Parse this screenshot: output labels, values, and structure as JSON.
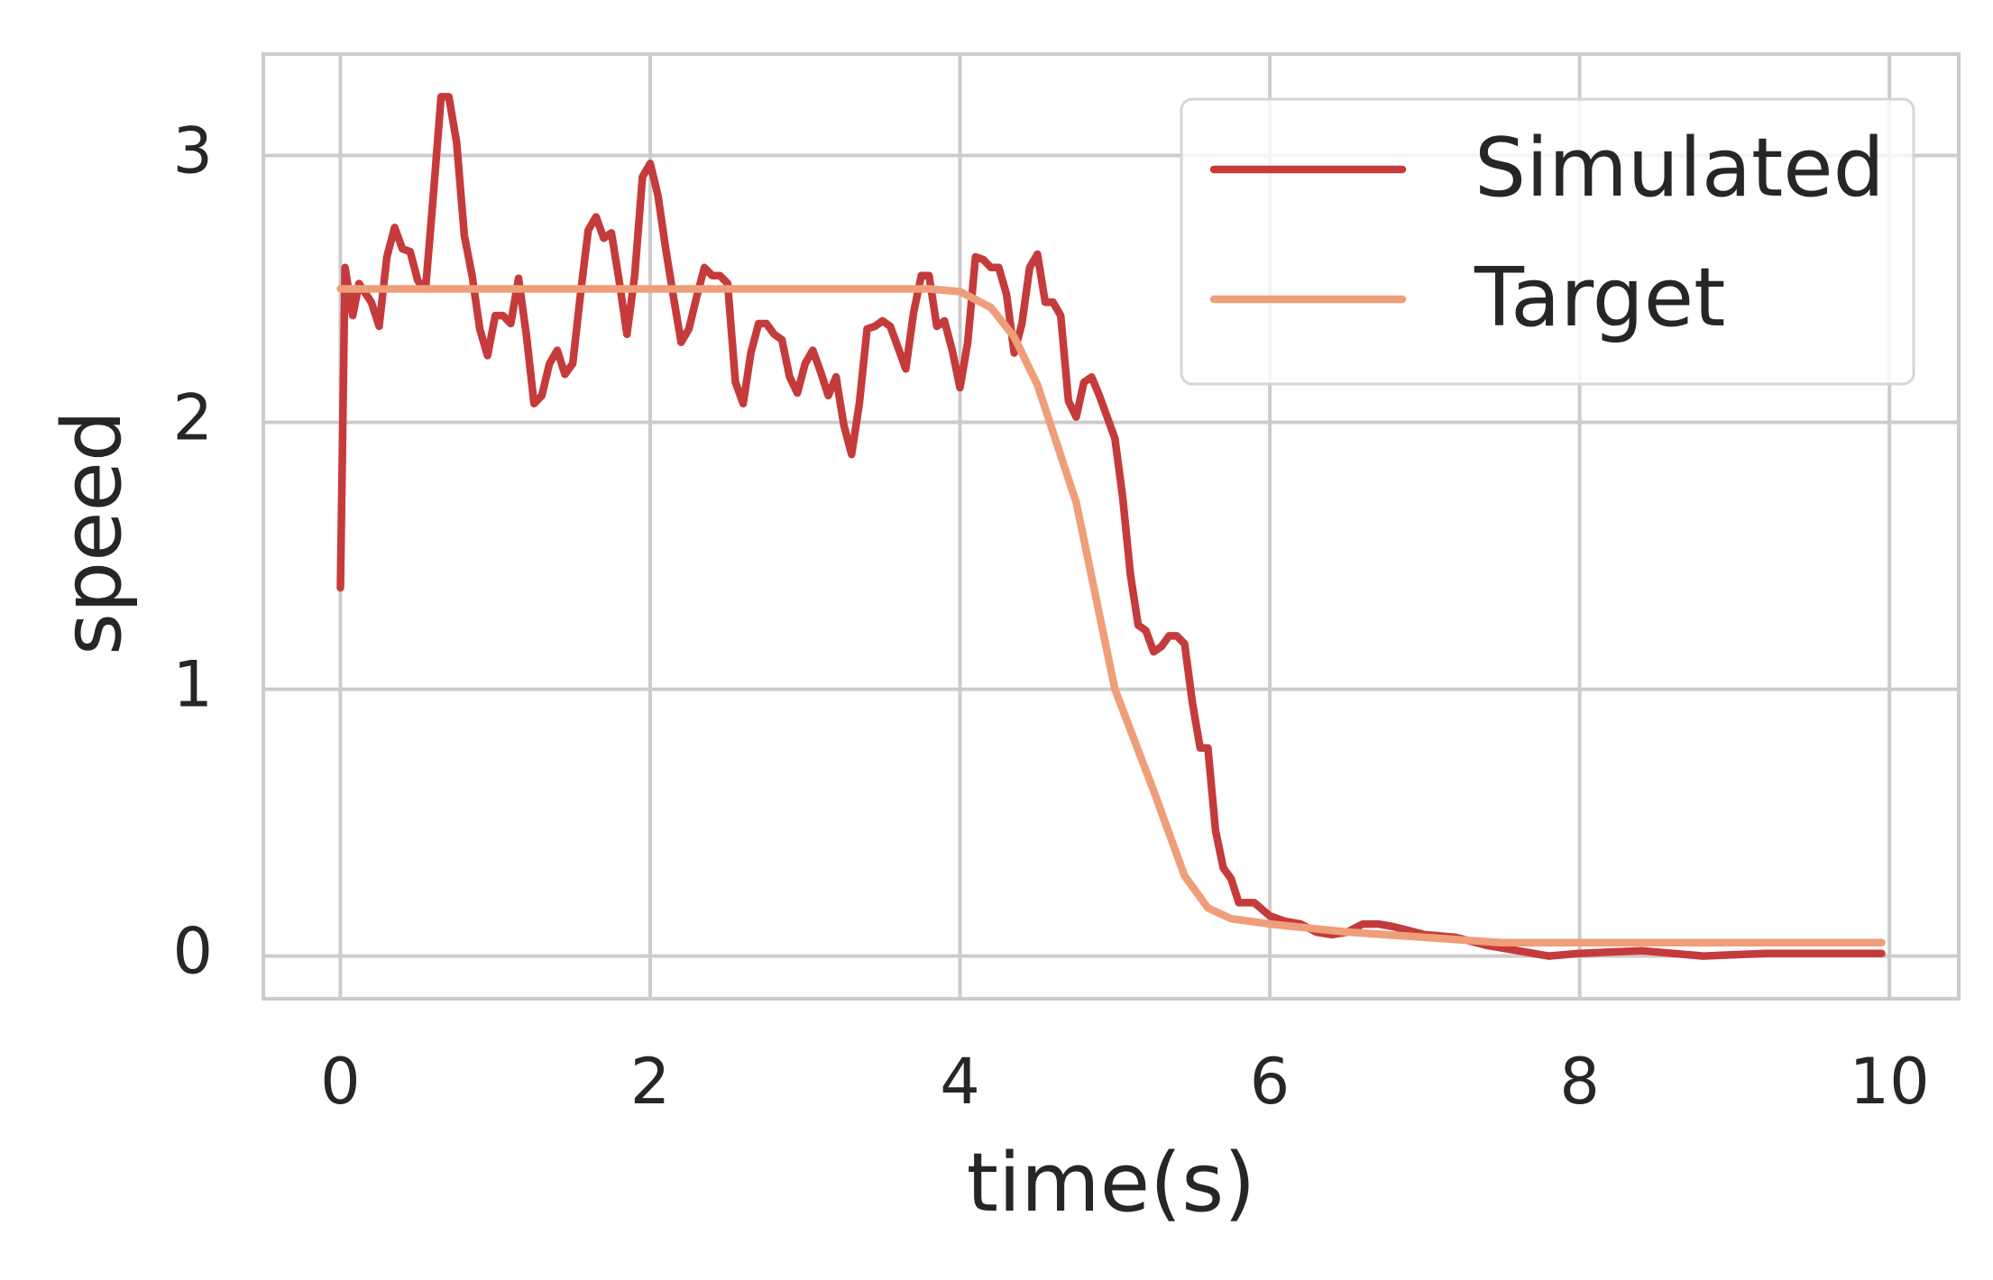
{
  "chart_data": {
    "type": "line",
    "x_label": "time(s)",
    "y_label": "speed",
    "xlim": [
      -0.4975,
      10.4475
    ],
    "ylim": [
      -0.16,
      3.38
    ],
    "xticks": [
      0,
      2,
      4,
      6,
      8,
      10
    ],
    "yticks": [
      0,
      1,
      2,
      3
    ],
    "grid": true,
    "legend": "upper right",
    "series": [
      {
        "name": "Simulated",
        "color": "#c53b3b",
        "x": [
          0,
          0.03,
          0.08,
          0.12,
          0.2,
          0.25,
          0.3,
          0.35,
          0.4,
          0.45,
          0.5,
          0.55,
          0.6,
          0.65,
          0.7,
          0.75,
          0.8,
          0.85,
          0.9,
          0.95,
          1.0,
          1.05,
          1.1,
          1.15,
          1.2,
          1.25,
          1.3,
          1.35,
          1.4,
          1.45,
          1.5,
          1.55,
          1.6,
          1.65,
          1.7,
          1.75,
          1.8,
          1.85,
          1.9,
          1.95,
          2.0,
          2.05,
          2.1,
          2.15,
          2.2,
          2.25,
          2.3,
          2.35,
          2.4,
          2.45,
          2.5,
          2.55,
          2.6,
          2.65,
          2.7,
          2.75,
          2.8,
          2.85,
          2.9,
          2.95,
          3.0,
          3.05,
          3.1,
          3.15,
          3.2,
          3.25,
          3.3,
          3.35,
          3.4,
          3.45,
          3.5,
          3.55,
          3.6,
          3.65,
          3.7,
          3.75,
          3.8,
          3.85,
          3.9,
          3.95,
          4.0,
          4.05,
          4.1,
          4.15,
          4.2,
          4.25,
          4.3,
          4.35,
          4.4,
          4.45,
          4.5,
          4.55,
          4.6,
          4.65,
          4.7,
          4.75,
          4.8,
          4.85,
          4.9,
          4.95,
          5.0,
          5.05,
          5.1,
          5.15,
          5.2,
          5.25,
          5.3,
          5.35,
          5.4,
          5.45,
          5.5,
          5.55,
          5.6,
          5.65,
          5.7,
          5.75,
          5.8,
          5.9,
          6.0,
          6.1,
          6.2,
          6.3,
          6.4,
          6.5,
          6.6,
          6.7,
          6.8,
          7.0,
          7.2,
          7.4,
          7.6,
          7.8,
          8.0,
          8.4,
          8.8,
          9.2,
          9.95
        ],
        "values": [
          1.38,
          2.58,
          2.4,
          2.52,
          2.45,
          2.36,
          2.62,
          2.73,
          2.65,
          2.64,
          2.53,
          2.5,
          2.85,
          3.22,
          3.22,
          3.05,
          2.7,
          2.55,
          2.35,
          2.25,
          2.4,
          2.4,
          2.37,
          2.54,
          2.33,
          2.07,
          2.1,
          2.22,
          2.27,
          2.18,
          2.22,
          2.48,
          2.72,
          2.77,
          2.69,
          2.71,
          2.53,
          2.33,
          2.55,
          2.92,
          2.97,
          2.85,
          2.65,
          2.47,
          2.3,
          2.35,
          2.47,
          2.58,
          2.55,
          2.55,
          2.52,
          2.15,
          2.07,
          2.26,
          2.37,
          2.37,
          2.33,
          2.31,
          2.17,
          2.11,
          2.22,
          2.27,
          2.19,
          2.1,
          2.17,
          1.99,
          1.88,
          2.07,
          2.35,
          2.36,
          2.38,
          2.36,
          2.28,
          2.2,
          2.41,
          2.55,
          2.55,
          2.36,
          2.38,
          2.27,
          2.13,
          2.3,
          2.62,
          2.61,
          2.58,
          2.58,
          2.48,
          2.26,
          2.37,
          2.58,
          2.63,
          2.45,
          2.45,
          2.4,
          2.08,
          2.02,
          2.15,
          2.17,
          2.1,
          2.02,
          1.94,
          1.72,
          1.43,
          1.24,
          1.22,
          1.14,
          1.16,
          1.2,
          1.2,
          1.17,
          0.95,
          0.78,
          0.78,
          0.47,
          0.33,
          0.29,
          0.2,
          0.2,
          0.15,
          0.13,
          0.12,
          0.09,
          0.08,
          0.09,
          0.12,
          0.12,
          0.11,
          0.08,
          0.07,
          0.04,
          0.02,
          0.0,
          0.01,
          0.02,
          0.0,
          0.01,
          0.01
        ]
      },
      {
        "name": "Target",
        "color": "#ef9e7a",
        "x": [
          0,
          3.8,
          4.0,
          4.2,
          4.35,
          4.5,
          4.75,
          5.0,
          5.25,
          5.45,
          5.6,
          5.75,
          6.0,
          6.5,
          7.0,
          7.5,
          8.0,
          9.95
        ],
        "values": [
          2.5,
          2.5,
          2.49,
          2.43,
          2.32,
          2.14,
          1.7,
          1.0,
          0.62,
          0.3,
          0.18,
          0.14,
          0.12,
          0.09,
          0.07,
          0.05,
          0.05,
          0.05
        ]
      }
    ]
  }
}
